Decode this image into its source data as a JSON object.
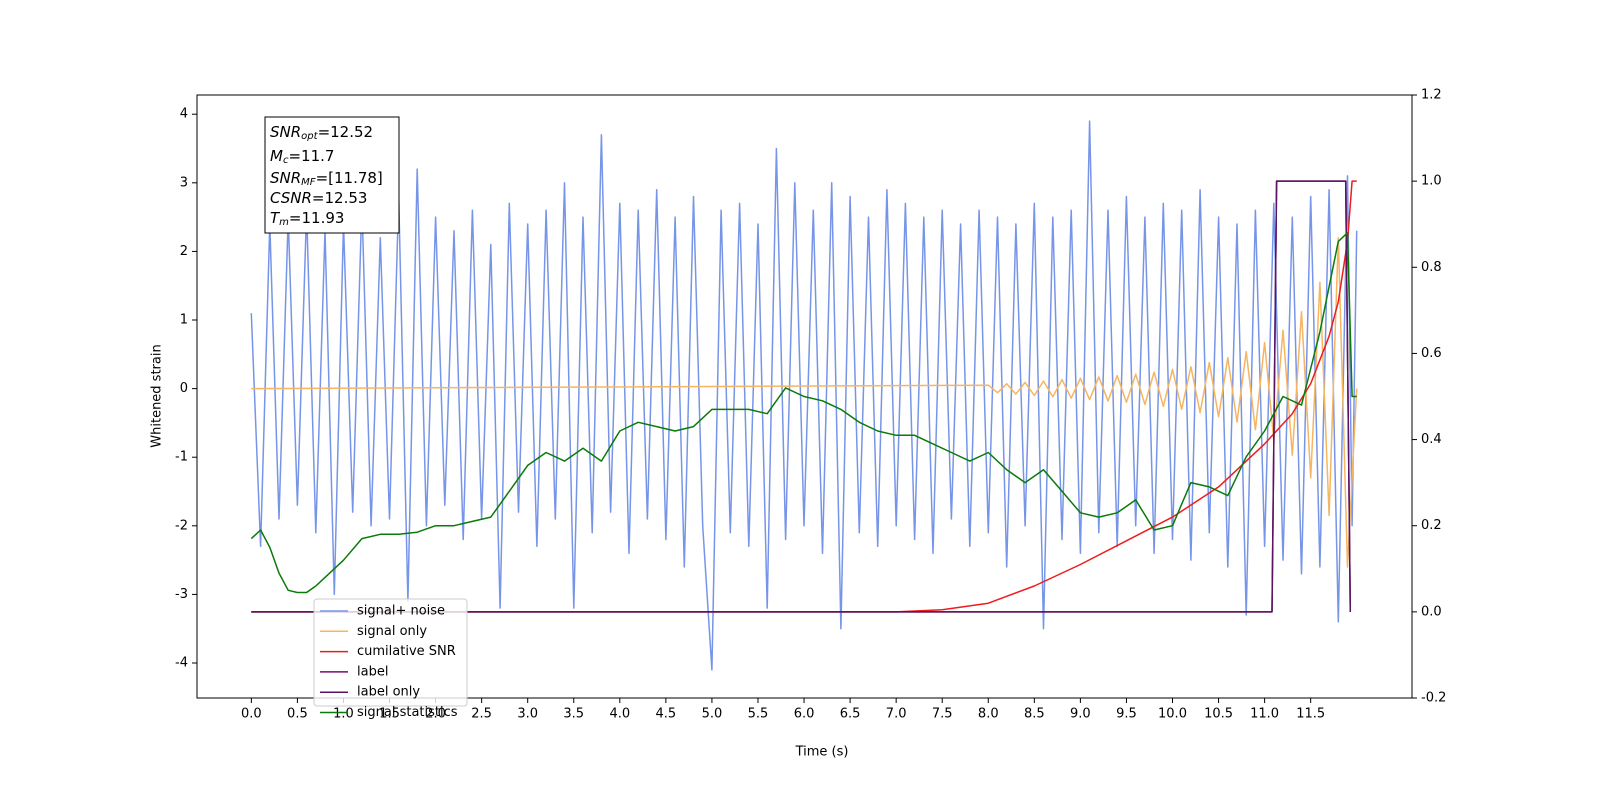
{
  "chart_data": {
    "type": "line",
    "xlabel": "Time (s)",
    "ylabel": "Whitened strain",
    "xlim": [
      -0.59,
      12.6
    ],
    "ylim": [
      -4.51,
      4.28
    ],
    "y2lim": [
      -0.2,
      1.2
    ],
    "xticks": [
      {
        "value": 0,
        "label": "0.0"
      },
      0.5,
      {
        "value": 1,
        "label": "1.0"
      },
      1.5,
      {
        "value": 2,
        "label": "2.0"
      },
      2.5,
      {
        "value": 3,
        "label": "3.0"
      },
      3.5,
      {
        "value": 4,
        "label": "4.0"
      },
      4.5,
      {
        "value": 5,
        "label": "5.0"
      },
      5.5,
      {
        "value": 6,
        "label": "6.0"
      },
      6.5,
      {
        "value": 7,
        "label": "7.0"
      },
      7.5,
      {
        "value": 8,
        "label": "8.0"
      },
      8.5,
      {
        "value": 9,
        "label": "9.0"
      },
      9.5,
      {
        "value": 10,
        "label": "10.0"
      },
      10.5,
      {
        "value": 11,
        "label": "11.0"
      },
      11.5
    ],
    "yticks": [
      -4,
      -3,
      -2,
      -1,
      0,
      1,
      2,
      3,
      4
    ],
    "y2ticks": [
      -0.2,
      {
        "value": 0,
        "label": "0.0"
      },
      0.2,
      0.4,
      0.6,
      0.8,
      {
        "value": 1,
        "label": "1.0"
      },
      1.2
    ],
    "legend": "lower left",
    "annotation": [
      {
        "base": "SNR",
        "sub": "opt",
        "rest": "=12.52"
      },
      {
        "base": "M",
        "sub": "c",
        "rest": "=11.7"
      },
      {
        "base": "SNR",
        "sub": "MF",
        "rest": "=[11.78]"
      },
      {
        "base": "CSNR",
        "rest": "=12.53"
      },
      {
        "base": "T",
        "sub": "m",
        "rest": "=11.93"
      }
    ],
    "series": [
      {
        "name": "signal+ noise",
        "color": "#7795e8",
        "axis": "y",
        "x": [
          0.0,
          0.1,
          0.2,
          0.3,
          0.4,
          0.5,
          0.6,
          0.7,
          0.8,
          0.9,
          1.0,
          1.1,
          1.2,
          1.3,
          1.4,
          1.5,
          1.6,
          1.7,
          1.8,
          1.9,
          2.0,
          2.1,
          2.2,
          2.3,
          2.4,
          2.5,
          2.6,
          2.7,
          2.8,
          2.9,
          3.0,
          3.1,
          3.2,
          3.3,
          3.4,
          3.5,
          3.6,
          3.7,
          3.8,
          3.9,
          4.0,
          4.1,
          4.2,
          4.3,
          4.4,
          4.5,
          4.6,
          4.7,
          4.8,
          4.9,
          5.0,
          5.1,
          5.2,
          5.3,
          5.4,
          5.5,
          5.6,
          5.7,
          5.8,
          5.9,
          6.0,
          6.1,
          6.2,
          6.3,
          6.4,
          6.5,
          6.6,
          6.7,
          6.8,
          6.9,
          7.0,
          7.1,
          7.2,
          7.3,
          7.4,
          7.5,
          7.6,
          7.7,
          7.8,
          7.9,
          8.0,
          8.1,
          8.2,
          8.3,
          8.4,
          8.5,
          8.6,
          8.7,
          8.8,
          8.9,
          9.0,
          9.1,
          9.2,
          9.3,
          9.4,
          9.5,
          9.6,
          9.7,
          9.8,
          9.9,
          10.0,
          10.1,
          10.2,
          10.3,
          10.4,
          10.5,
          10.6,
          10.7,
          10.8,
          10.9,
          11.0,
          11.1,
          11.2,
          11.3,
          11.4,
          11.5,
          11.6,
          11.7,
          11.8,
          11.9,
          11.95,
          12.0
        ],
        "values": [
          1.1,
          -2.3,
          2.4,
          -1.9,
          2.5,
          -1.7,
          2.6,
          -2.1,
          2.3,
          -3.0,
          2.4,
          -1.8,
          2.7,
          -2.0,
          2.2,
          -1.9,
          2.8,
          -3.1,
          3.2,
          -2.0,
          2.5,
          -1.7,
          2.3,
          -2.2,
          2.6,
          -1.9,
          2.1,
          -3.2,
          2.7,
          -1.8,
          2.4,
          -2.3,
          2.6,
          -1.9,
          3.0,
          -3.2,
          2.5,
          -2.1,
          3.7,
          -1.8,
          2.7,
          -2.4,
          2.6,
          -1.9,
          2.9,
          -2.2,
          2.5,
          -2.6,
          2.8,
          -2.0,
          -4.1,
          2.6,
          -2.1,
          2.7,
          -2.3,
          2.4,
          -3.2,
          3.5,
          -2.2,
          3.0,
          -2.0,
          2.6,
          -2.4,
          3.0,
          -3.5,
          2.8,
          -2.1,
          2.5,
          -2.3,
          2.9,
          -2.0,
          2.7,
          -2.2,
          2.5,
          -2.4,
          2.6,
          -1.9,
          2.4,
          -2.3,
          2.6,
          -2.1,
          2.5,
          -2.6,
          2.4,
          -2.0,
          2.7,
          -3.5,
          2.5,
          -2.2,
          2.6,
          -2.4,
          3.9,
          -2.1,
          2.6,
          -2.3,
          2.8,
          -2.0,
          2.5,
          -2.4,
          2.7,
          -2.2,
          2.6,
          -2.5,
          2.9,
          -2.1,
          2.5,
          -2.6,
          2.4,
          -3.3,
          2.6,
          -2.3,
          2.7,
          -2.5,
          2.5,
          -2.7,
          2.8,
          -2.6,
          2.9,
          -3.4,
          3.1,
          -2.0,
          2.3
        ]
      },
      {
        "name": "signal only",
        "color": "#f5b562",
        "axis": "y",
        "x": [
          0.0,
          8.0,
          8.1,
          8.2,
          8.3,
          8.4,
          8.5,
          8.6,
          8.7,
          8.8,
          8.9,
          9.0,
          9.1,
          9.2,
          9.3,
          9.4,
          9.5,
          9.6,
          9.7,
          9.8,
          9.9,
          10.0,
          10.1,
          10.2,
          10.3,
          10.4,
          10.5,
          10.6,
          10.7,
          10.8,
          10.9,
          11.0,
          11.1,
          11.2,
          11.3,
          11.4,
          11.5,
          11.6,
          11.7,
          11.8,
          11.9,
          12.0
        ],
        "values": [
          0,
          0.05,
          -0.06,
          0.07,
          -0.08,
          0.09,
          -0.1,
          0.11,
          -0.12,
          0.13,
          -0.14,
          0.15,
          -0.16,
          0.17,
          -0.18,
          0.19,
          -0.2,
          0.21,
          -0.23,
          0.24,
          -0.26,
          0.28,
          -0.3,
          0.32,
          -0.35,
          0.38,
          -0.41,
          0.45,
          -0.49,
          0.54,
          -0.6,
          0.67,
          -0.75,
          0.85,
          -0.97,
          1.12,
          -1.3,
          1.55,
          -1.85,
          2.2,
          -2.6,
          0
        ]
      },
      {
        "name": "cumilative SNR",
        "color": "#ee1c1c",
        "axis": "y2",
        "x": [
          0.0,
          7.0,
          7.5,
          8.0,
          8.5,
          9.0,
          9.5,
          10.0,
          10.5,
          11.0,
          11.3,
          11.5,
          11.7,
          11.8,
          11.9,
          11.95,
          12.0
        ],
        "values": [
          0,
          0,
          0.005,
          0.02,
          0.06,
          0.11,
          0.165,
          0.22,
          0.29,
          0.39,
          0.46,
          0.53,
          0.64,
          0.72,
          0.86,
          1.0,
          1.0
        ]
      },
      {
        "name": "label",
        "color": "#7a0a7a",
        "axis": "y2",
        "x": [
          0.0,
          11.08,
          11.13,
          11.88,
          11.93
        ],
        "values": [
          0,
          0,
          1,
          1,
          0
        ]
      },
      {
        "name": "label only",
        "color": "#5a1460",
        "axis": "y2",
        "x": [
          0.0,
          11.08,
          11.13,
          11.88,
          11.93
        ],
        "values": [
          0,
          0,
          1,
          1,
          0
        ]
      },
      {
        "name": "signal statistics",
        "color": "#0a7a0a",
        "axis": "y2",
        "x": [
          0.0,
          0.1,
          0.2,
          0.3,
          0.4,
          0.5,
          0.6,
          0.7,
          0.8,
          1.0,
          1.2,
          1.4,
          1.6,
          1.8,
          2.0,
          2.2,
          2.4,
          2.6,
          2.8,
          3.0,
          3.2,
          3.4,
          3.6,
          3.8,
          4.0,
          4.2,
          4.4,
          4.6,
          4.8,
          5.0,
          5.2,
          5.4,
          5.6,
          5.8,
          6.0,
          6.2,
          6.4,
          6.6,
          6.8,
          7.0,
          7.2,
          7.4,
          7.6,
          7.8,
          8.0,
          8.2,
          8.4,
          8.6,
          8.8,
          9.0,
          9.2,
          9.4,
          9.6,
          9.8,
          10.0,
          10.2,
          10.4,
          10.6,
          10.8,
          11.0,
          11.2,
          11.4,
          11.6,
          11.8,
          11.9,
          11.95,
          12.0
        ],
        "values": [
          0.17,
          0.19,
          0.15,
          0.09,
          0.05,
          0.045,
          0.045,
          0.06,
          0.08,
          0.12,
          0.17,
          0.18,
          0.18,
          0.185,
          0.2,
          0.2,
          0.21,
          0.22,
          0.28,
          0.34,
          0.37,
          0.35,
          0.38,
          0.35,
          0.42,
          0.44,
          0.43,
          0.42,
          0.43,
          0.47,
          0.47,
          0.47,
          0.46,
          0.52,
          0.5,
          0.49,
          0.47,
          0.44,
          0.42,
          0.41,
          0.41,
          0.39,
          0.37,
          0.35,
          0.37,
          0.33,
          0.3,
          0.33,
          0.28,
          0.23,
          0.22,
          0.23,
          0.26,
          0.19,
          0.2,
          0.3,
          0.29,
          0.27,
          0.36,
          0.42,
          0.5,
          0.48,
          0.65,
          0.86,
          0.88,
          0.5,
          0.5
        ]
      }
    ]
  }
}
